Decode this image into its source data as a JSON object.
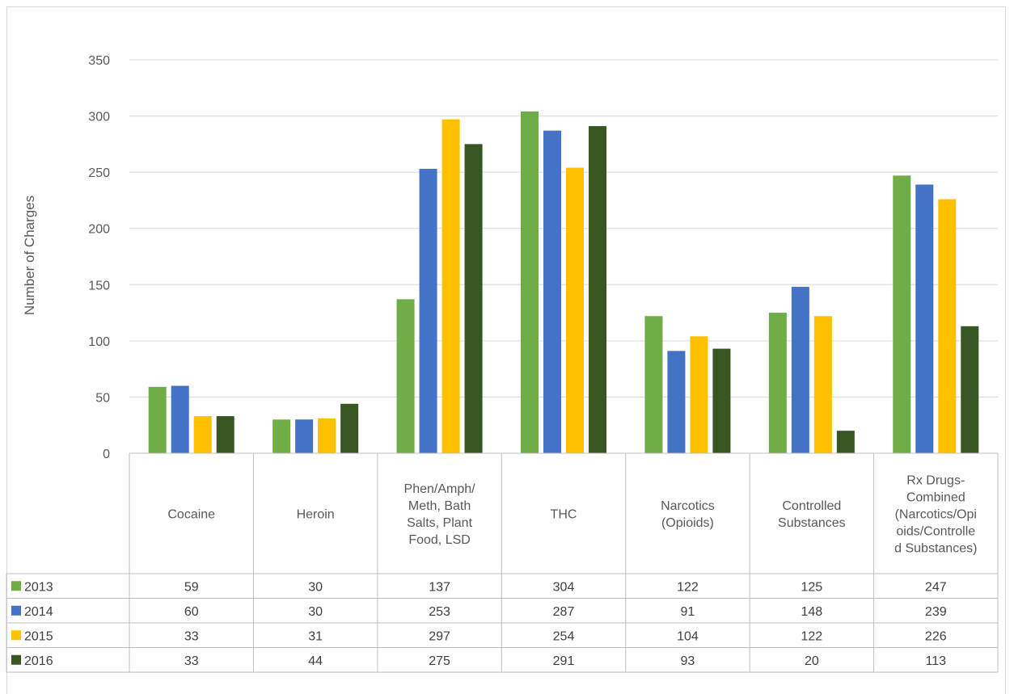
{
  "chart_data": {
    "type": "bar",
    "title": "",
    "xlabel": "",
    "ylabel": "Number of Charges",
    "ylim": [
      0,
      350
    ],
    "yticks": [
      0,
      50,
      100,
      150,
      200,
      250,
      300,
      350
    ],
    "grid": true,
    "legend": "data-table",
    "categories": [
      [
        "Cocaine"
      ],
      [
        "Heroin"
      ],
      [
        "Phen/Amph/",
        "Meth, Bath",
        "Salts, Plant",
        "Food, LSD"
      ],
      [
        "THC"
      ],
      [
        "Narcotics",
        "(Opioids)"
      ],
      [
        "Controlled",
        "Substances"
      ],
      [
        "Rx Drugs-",
        "Combined",
        "(Narcotics/Opi",
        "oids/Controlle",
        "d Substances)"
      ]
    ],
    "series": [
      {
        "name": "2013",
        "color": "#70ad47",
        "values": [
          59,
          30,
          137,
          304,
          122,
          125,
          247
        ]
      },
      {
        "name": "2014",
        "color": "#4472c4",
        "values": [
          60,
          30,
          253,
          287,
          91,
          148,
          239
        ]
      },
      {
        "name": "2015",
        "color": "#ffc000",
        "values": [
          33,
          31,
          297,
          254,
          104,
          122,
          226
        ]
      },
      {
        "name": "2016",
        "color": "#375623",
        "values": [
          33,
          44,
          275,
          291,
          93,
          20,
          113
        ]
      }
    ]
  }
}
